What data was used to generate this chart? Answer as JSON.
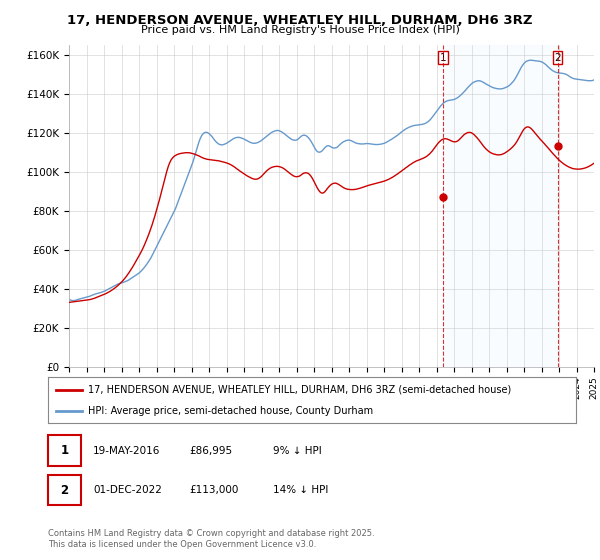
{
  "title": "17, HENDERSON AVENUE, WHEATLEY HILL, DURHAM, DH6 3RZ",
  "subtitle": "Price paid vs. HM Land Registry's House Price Index (HPI)",
  "ylabel_ticks": [
    "£0",
    "£20K",
    "£40K",
    "£60K",
    "£80K",
    "£100K",
    "£120K",
    "£140K",
    "£160K"
  ],
  "ytick_values": [
    0,
    20000,
    40000,
    60000,
    80000,
    100000,
    120000,
    140000,
    160000
  ],
  "ylim": [
    0,
    165000
  ],
  "legend_line1": "17, HENDERSON AVENUE, WHEATLEY HILL, DURHAM, DH6 3RZ (semi-detached house)",
  "legend_line2": "HPI: Average price, semi-detached house, County Durham",
  "annotation1_label": "1",
  "annotation1_date": "19-MAY-2016",
  "annotation1_price": "£86,995",
  "annotation1_note": "9% ↓ HPI",
  "annotation2_label": "2",
  "annotation2_date": "01-DEC-2022",
  "annotation2_price": "£113,000",
  "annotation2_note": "14% ↓ HPI",
  "footer": "Contains HM Land Registry data © Crown copyright and database right 2025.\nThis data is licensed under the Open Government Licence v3.0.",
  "red_color": "#cc0000",
  "blue_color": "#6699cc",
  "blue_fill_color": "#ddeeff",
  "annotation_line_color": "#cc0000",
  "sale_dates": [
    2016.38,
    2022.92
  ],
  "sale_prices": [
    86995,
    113000
  ],
  "xmin": 1995,
  "xmax": 2025,
  "hpi_months": [
    1995.0,
    1995.083,
    1995.167,
    1995.25,
    1995.333,
    1995.417,
    1995.5,
    1995.583,
    1995.667,
    1995.75,
    1995.833,
    1995.917,
    1996.0,
    1996.083,
    1996.167,
    1996.25,
    1996.333,
    1996.417,
    1996.5,
    1996.583,
    1996.667,
    1996.75,
    1996.833,
    1996.917,
    1997.0,
    1997.083,
    1997.167,
    1997.25,
    1997.333,
    1997.417,
    1997.5,
    1997.583,
    1997.667,
    1997.75,
    1997.833,
    1997.917,
    1998.0,
    1998.083,
    1998.167,
    1998.25,
    1998.333,
    1998.417,
    1998.5,
    1998.583,
    1998.667,
    1998.75,
    1998.833,
    1998.917,
    1999.0,
    1999.083,
    1999.167,
    1999.25,
    1999.333,
    1999.417,
    1999.5,
    1999.583,
    1999.667,
    1999.75,
    1999.833,
    1999.917,
    2000.0,
    2000.083,
    2000.167,
    2000.25,
    2000.333,
    2000.417,
    2000.5,
    2000.583,
    2000.667,
    2000.75,
    2000.833,
    2000.917,
    2001.0,
    2001.083,
    2001.167,
    2001.25,
    2001.333,
    2001.417,
    2001.5,
    2001.583,
    2001.667,
    2001.75,
    2001.833,
    2001.917,
    2002.0,
    2002.083,
    2002.167,
    2002.25,
    2002.333,
    2002.417,
    2002.5,
    2002.583,
    2002.667,
    2002.75,
    2002.833,
    2002.917,
    2003.0,
    2003.083,
    2003.167,
    2003.25,
    2003.333,
    2003.417,
    2003.5,
    2003.583,
    2003.667,
    2003.75,
    2003.833,
    2003.917,
    2004.0,
    2004.083,
    2004.167,
    2004.25,
    2004.333,
    2004.417,
    2004.5,
    2004.583,
    2004.667,
    2004.75,
    2004.833,
    2004.917,
    2005.0,
    2005.083,
    2005.167,
    2005.25,
    2005.333,
    2005.417,
    2005.5,
    2005.583,
    2005.667,
    2005.75,
    2005.833,
    2005.917,
    2006.0,
    2006.083,
    2006.167,
    2006.25,
    2006.333,
    2006.417,
    2006.5,
    2006.583,
    2006.667,
    2006.75,
    2006.833,
    2006.917,
    2007.0,
    2007.083,
    2007.167,
    2007.25,
    2007.333,
    2007.417,
    2007.5,
    2007.583,
    2007.667,
    2007.75,
    2007.833,
    2007.917,
    2008.0,
    2008.083,
    2008.167,
    2008.25,
    2008.333,
    2008.417,
    2008.5,
    2008.583,
    2008.667,
    2008.75,
    2008.833,
    2008.917,
    2009.0,
    2009.083,
    2009.167,
    2009.25,
    2009.333,
    2009.417,
    2009.5,
    2009.583,
    2009.667,
    2009.75,
    2009.833,
    2009.917,
    2010.0,
    2010.083,
    2010.167,
    2010.25,
    2010.333,
    2010.417,
    2010.5,
    2010.583,
    2010.667,
    2010.75,
    2010.833,
    2010.917,
    2011.0,
    2011.083,
    2011.167,
    2011.25,
    2011.333,
    2011.417,
    2011.5,
    2011.583,
    2011.667,
    2011.75,
    2011.833,
    2011.917,
    2012.0,
    2012.083,
    2012.167,
    2012.25,
    2012.333,
    2012.417,
    2012.5,
    2012.583,
    2012.667,
    2012.75,
    2012.833,
    2012.917,
    2013.0,
    2013.083,
    2013.167,
    2013.25,
    2013.333,
    2013.417,
    2013.5,
    2013.583,
    2013.667,
    2013.75,
    2013.833,
    2013.917,
    2014.0,
    2014.083,
    2014.167,
    2014.25,
    2014.333,
    2014.417,
    2014.5,
    2014.583,
    2014.667,
    2014.75,
    2014.833,
    2014.917,
    2015.0,
    2015.083,
    2015.167,
    2015.25,
    2015.333,
    2015.417,
    2015.5,
    2015.583,
    2015.667,
    2015.75,
    2015.833,
    2015.917,
    2016.0,
    2016.083,
    2016.167,
    2016.25,
    2016.333,
    2016.417,
    2016.5,
    2016.583,
    2016.667,
    2016.75,
    2016.833,
    2016.917,
    2017.0,
    2017.083,
    2017.167,
    2017.25,
    2017.333,
    2017.417,
    2017.5,
    2017.583,
    2017.667,
    2017.75,
    2017.833,
    2017.917,
    2018.0,
    2018.083,
    2018.167,
    2018.25,
    2018.333,
    2018.417,
    2018.5,
    2018.583,
    2018.667,
    2018.75,
    2018.833,
    2018.917,
    2019.0,
    2019.083,
    2019.167,
    2019.25,
    2019.333,
    2019.417,
    2019.5,
    2019.583,
    2019.667,
    2019.75,
    2019.833,
    2019.917,
    2020.0,
    2020.083,
    2020.167,
    2020.25,
    2020.333,
    2020.417,
    2020.5,
    2020.583,
    2020.667,
    2020.75,
    2020.833,
    2020.917,
    2021.0,
    2021.083,
    2021.167,
    2021.25,
    2021.333,
    2021.417,
    2021.5,
    2021.583,
    2021.667,
    2021.75,
    2021.833,
    2021.917,
    2022.0,
    2022.083,
    2022.167,
    2022.25,
    2022.333,
    2022.417,
    2022.5,
    2022.583,
    2022.667,
    2022.75,
    2022.833,
    2022.917,
    2023.0,
    2023.083,
    2023.167,
    2023.25,
    2023.333,
    2023.417,
    2023.5,
    2023.583,
    2023.667,
    2023.75,
    2023.833,
    2023.917,
    2024.0,
    2024.083,
    2024.167,
    2024.25,
    2024.333,
    2024.417,
    2024.5,
    2024.583,
    2024.667,
    2024.75,
    2024.833,
    2024.917,
    2025.0
  ],
  "hpi_values": [
    34500,
    34200,
    34000,
    33900,
    34000,
    34200,
    34500,
    34700,
    34900,
    35100,
    35300,
    35500,
    35700,
    35900,
    36100,
    36400,
    36700,
    37000,
    37300,
    37500,
    37700,
    37900,
    38100,
    38400,
    38700,
    39000,
    39400,
    39800,
    40200,
    40600,
    41000,
    41400,
    41800,
    42200,
    42500,
    42800,
    43000,
    43200,
    43500,
    43800,
    44100,
    44500,
    45000,
    45500,
    46000,
    46500,
    47000,
    47500,
    48000,
    48700,
    49500,
    50300,
    51200,
    52200,
    53300,
    54400,
    55600,
    57000,
    58500,
    60000,
    61500,
    63000,
    64500,
    66000,
    67500,
    69000,
    70500,
    72000,
    73500,
    75000,
    76500,
    78000,
    79500,
    81000,
    83000,
    85000,
    87000,
    89000,
    91000,
    93000,
    95000,
    97000,
    99000,
    101000,
    103000,
    105000,
    107500,
    110000,
    112500,
    115000,
    117000,
    118500,
    119500,
    120000,
    120200,
    120000,
    119500,
    118800,
    118000,
    117000,
    116000,
    115200,
    114500,
    114000,
    113800,
    113700,
    113900,
    114200,
    114500,
    115000,
    115500,
    116000,
    116500,
    117000,
    117300,
    117500,
    117600,
    117500,
    117300,
    117000,
    116700,
    116300,
    115900,
    115500,
    115100,
    114800,
    114600,
    114500,
    114600,
    114800,
    115100,
    115500,
    116000,
    116600,
    117200,
    117800,
    118400,
    119000,
    119600,
    120100,
    120500,
    120800,
    121000,
    121100,
    121000,
    120700,
    120300,
    119800,
    119200,
    118600,
    118000,
    117400,
    116900,
    116400,
    116200,
    116100,
    116200,
    116600,
    117300,
    118000,
    118500,
    118700,
    118600,
    118200,
    117500,
    116600,
    115500,
    114200,
    112800,
    111500,
    110500,
    110000,
    110000,
    110300,
    111000,
    111900,
    112700,
    113200,
    113300,
    113000,
    112500,
    112200,
    112100,
    112200,
    112600,
    113300,
    114000,
    114700,
    115200,
    115600,
    115900,
    116100,
    116200,
    116000,
    115700,
    115300,
    114900,
    114600,
    114400,
    114300,
    114200,
    114200,
    114200,
    114300,
    114400,
    114400,
    114300,
    114200,
    114100,
    114000,
    113900,
    113900,
    113900,
    114000,
    114100,
    114300,
    114500,
    114800,
    115200,
    115600,
    116100,
    116500,
    117000,
    117500,
    118000,
    118500,
    119100,
    119700,
    120300,
    120900,
    121400,
    121900,
    122300,
    122700,
    123000,
    123300,
    123500,
    123700,
    123800,
    123900,
    124000,
    124100,
    124200,
    124400,
    124600,
    125000,
    125500,
    126100,
    126900,
    127800,
    128800,
    129800,
    130900,
    131900,
    132900,
    133800,
    134600,
    135300,
    135800,
    136200,
    136400,
    136600,
    136700,
    136800,
    137000,
    137300,
    137700,
    138200,
    138800,
    139500,
    140200,
    141000,
    141800,
    142700,
    143500,
    144300,
    145000,
    145600,
    146000,
    146300,
    146500,
    146600,
    146500,
    146200,
    145800,
    145400,
    144900,
    144500,
    144100,
    143700,
    143300,
    143000,
    142800,
    142600,
    142500,
    142400,
    142400,
    142500,
    142700,
    143000,
    143300,
    143700,
    144200,
    144900,
    145700,
    146600,
    147700,
    149000,
    150400,
    151900,
    153300,
    154500,
    155500,
    156200,
    156700,
    156900,
    157100,
    157100,
    157000,
    156900,
    156800,
    156700,
    156600,
    156500,
    156300,
    155900,
    155400,
    154800,
    154100,
    153400,
    152700,
    152100,
    151600,
    151200,
    150900,
    150700,
    150600,
    150500,
    150400,
    150300,
    150100,
    149800,
    149400,
    148900,
    148400,
    148000,
    147700,
    147500,
    147400,
    147300,
    147200,
    147100,
    147000,
    146900,
    146800,
    146700,
    146600,
    146600,
    146600,
    146700,
    147000
  ],
  "red_values": [
    33000,
    33100,
    33200,
    33300,
    33400,
    33500,
    33600,
    33700,
    33800,
    33900,
    34000,
    34100,
    34200,
    34300,
    34400,
    34600,
    34800,
    35000,
    35300,
    35600,
    35900,
    36200,
    36500,
    36800,
    37100,
    37400,
    37800,
    38200,
    38600,
    39100,
    39600,
    40100,
    40700,
    41300,
    42000,
    42700,
    43400,
    44200,
    45100,
    46000,
    47000,
    48100,
    49200,
    50400,
    51600,
    52900,
    54200,
    55500,
    56800,
    58200,
    59700,
    61200,
    62900,
    64700,
    66600,
    68500,
    70600,
    72800,
    75100,
    77600,
    80200,
    82900,
    85600,
    88500,
    91400,
    94300,
    97200,
    100000,
    102500,
    104500,
    106000,
    107000,
    107800,
    108300,
    108700,
    109000,
    109200,
    109400,
    109500,
    109600,
    109700,
    109700,
    109700,
    109600,
    109400,
    109200,
    109000,
    108700,
    108400,
    108100,
    107700,
    107300,
    107000,
    106700,
    106500,
    106300,
    106200,
    106100,
    106000,
    105900,
    105800,
    105700,
    105600,
    105500,
    105300,
    105100,
    104900,
    104700,
    104500,
    104200,
    103900,
    103500,
    103100,
    102600,
    102100,
    101500,
    101000,
    100400,
    99900,
    99400,
    98900,
    98400,
    97900,
    97500,
    97100,
    96700,
    96400,
    96200,
    96100,
    96200,
    96500,
    97000,
    97600,
    98400,
    99200,
    100000,
    100700,
    101300,
    101800,
    102200,
    102400,
    102600,
    102700,
    102700,
    102600,
    102400,
    102100,
    101700,
    101200,
    100600,
    100000,
    99400,
    98800,
    98300,
    97800,
    97500,
    97400,
    97500,
    97700,
    98200,
    98800,
    99200,
    99400,
    99400,
    99100,
    98500,
    97600,
    96400,
    95000,
    93500,
    92000,
    90700,
    89700,
    89100,
    89000,
    89400,
    90200,
    91200,
    92100,
    92900,
    93500,
    93900,
    94100,
    94100,
    93800,
    93400,
    92900,
    92400,
    91900,
    91500,
    91200,
    91000,
    90900,
    90800,
    90800,
    90800,
    90900,
    91000,
    91200,
    91400,
    91600,
    91900,
    92100,
    92400,
    92600,
    92900,
    93100,
    93300,
    93500,
    93700,
    93900,
    94100,
    94300,
    94500,
    94700,
    94900,
    95100,
    95400,
    95700,
    96000,
    96400,
    96800,
    97200,
    97700,
    98200,
    98700,
    99200,
    99800,
    100300,
    100900,
    101400,
    102000,
    102500,
    103100,
    103600,
    104100,
    104600,
    105000,
    105400,
    105700,
    106000,
    106300,
    106600,
    106900,
    107300,
    107700,
    108300,
    108900,
    109700,
    110500,
    111500,
    112500,
    113500,
    114500,
    115300,
    116000,
    116500,
    116800,
    116900,
    116800,
    116500,
    116200,
    115800,
    115500,
    115300,
    115300,
    115500,
    116000,
    116700,
    117500,
    118300,
    119000,
    119500,
    119900,
    120100,
    120100,
    119900,
    119400,
    118800,
    118000,
    117200,
    116300,
    115300,
    114300,
    113300,
    112400,
    111600,
    110900,
    110300,
    109800,
    109400,
    109100,
    108900,
    108700,
    108600,
    108600,
    108700,
    108900,
    109200,
    109600,
    110100,
    110600,
    111200,
    111800,
    112500,
    113300,
    114200,
    115300,
    116600,
    118000,
    119400,
    120700,
    121800,
    122500,
    122900,
    122900,
    122600,
    122000,
    121200,
    120300,
    119300,
    118400,
    117500,
    116700,
    115900,
    115100,
    114300,
    113400,
    112600,
    111700,
    110800,
    110000,
    109100,
    108300,
    107500,
    106700,
    106000,
    105300,
    104700,
    104100,
    103600,
    103100,
    102700,
    102300,
    102000,
    101700,
    101500,
    101400,
    101300,
    101300,
    101300,
    101400,
    101500,
    101700,
    101900,
    102200,
    102500,
    102900,
    103300,
    103800,
    104300
  ]
}
